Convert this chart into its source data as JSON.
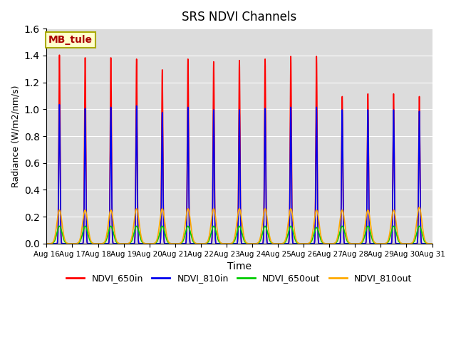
{
  "title": "SRS NDVI Channels",
  "xlabel": "Time",
  "ylabel": "Radiance (W/m2/nm/s)",
  "annotation": "MB_tule",
  "ylim": [
    0,
    1.6
  ],
  "colors": {
    "NDVI_650in": "#ff0000",
    "NDVI_810in": "#0000ee",
    "NDVI_650out": "#00cc00",
    "NDVI_810out": "#ffaa00"
  },
  "bg_color": "#dcdcdc",
  "n_days": 15,
  "xtick_labels": [
    "Aug 16",
    "Aug 17",
    "Aug 18",
    "Aug 19",
    "Aug 20",
    "Aug 21",
    "Aug 22",
    "Aug 23",
    "Aug 24",
    "Aug 25",
    "Aug 26",
    "Aug 27",
    "Aug 28",
    "Aug 29",
    "Aug 30",
    "Aug 31"
  ],
  "peaks_650in": [
    1.41,
    1.39,
    1.39,
    1.38,
    1.3,
    1.38,
    1.36,
    1.37,
    1.38,
    1.4,
    1.4,
    1.1,
    1.12,
    1.12,
    1.1
  ],
  "peaks_810in": [
    1.04,
    1.01,
    1.02,
    1.03,
    0.98,
    1.02,
    1.0,
    1.0,
    1.01,
    1.02,
    1.02,
    1.0,
    1.0,
    1.0,
    0.99
  ],
  "peaks_650out": [
    0.13,
    0.13,
    0.13,
    0.13,
    0.13,
    0.13,
    0.13,
    0.13,
    0.13,
    0.13,
    0.12,
    0.13,
    0.13,
    0.13,
    0.13
  ],
  "peaks_810out": [
    0.25,
    0.25,
    0.25,
    0.26,
    0.26,
    0.26,
    0.26,
    0.26,
    0.26,
    0.26,
    0.25,
    0.25,
    0.25,
    0.25,
    0.27
  ]
}
